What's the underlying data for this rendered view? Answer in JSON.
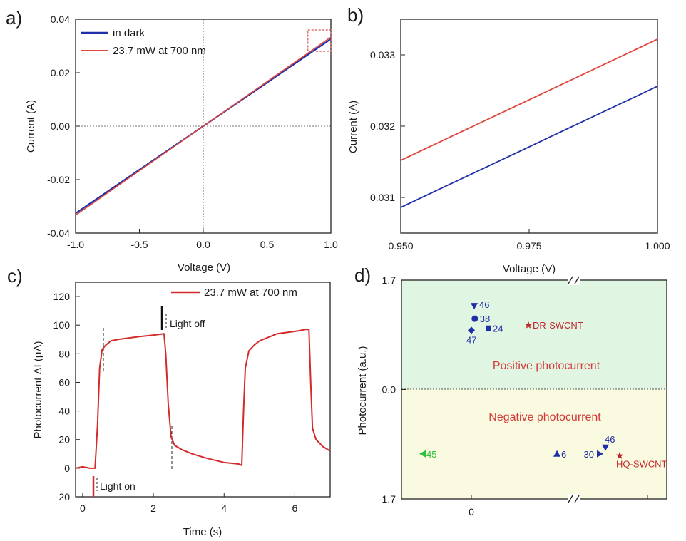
{
  "panels": {
    "a": {
      "label": "a)",
      "chart_data": {
        "type": "line",
        "xlabel": "Voltage (V)",
        "ylabel": "Current (A)",
        "xlim": [
          -1.0,
          1.0
        ],
        "ylim": [
          -0.04,
          0.04
        ],
        "xticks": [
          "-1.0",
          "-0.5",
          "0.0",
          "0.5",
          "1.0"
        ],
        "yticks": [
          "-0.04",
          "-0.02",
          "0.00",
          "0.02",
          "0.04"
        ],
        "series": [
          {
            "name": "in dark",
            "color": "#1f2fa8",
            "x": [
              -1.0,
              1.0
            ],
            "y": [
              -0.0326,
              0.0326
            ]
          },
          {
            "name": "23.7 mW at 700 nm",
            "color": "#e0463c",
            "x": [
              -1.0,
              1.0
            ],
            "y": [
              -0.0333,
              0.0333
            ]
          }
        ],
        "zoom_box": {
          "x": [
            0.82,
            1.0
          ],
          "y": [
            0.028,
            0.036
          ]
        },
        "legend": "top-left"
      }
    },
    "b": {
      "label": "b)",
      "chart_data": {
        "type": "line",
        "xlabel": "Voltage (V)",
        "ylabel": "Current (A)",
        "xlim": [
          0.95,
          1.0
        ],
        "ylim": [
          0.0305,
          0.0335
        ],
        "xticks": [
          "0.950",
          "0.975",
          "1.000"
        ],
        "yticks": [
          "0.031",
          "0.032",
          "0.033"
        ],
        "series": [
          {
            "name": "in dark",
            "color": "#1f2fa8",
            "x": [
              0.95,
              1.0
            ],
            "y": [
              0.03086,
              0.03256
            ]
          },
          {
            "name": "23.7 mW at 700 nm",
            "color": "#e0463c",
            "x": [
              0.95,
              1.0
            ],
            "y": [
              0.03152,
              0.03322
            ]
          }
        ]
      }
    },
    "c": {
      "label": "c)",
      "chart_data": {
        "type": "line",
        "xlabel": "Time (s)",
        "ylabel": "Photocurrent ΔI (μA)",
        "xlim": [
          -0.2,
          7.0
        ],
        "ylim": [
          -20,
          130
        ],
        "xticks": [
          "0",
          "2",
          "4",
          "6"
        ],
        "yticks": [
          "-20",
          "0",
          "20",
          "40",
          "60",
          "80",
          "100",
          "120"
        ],
        "series": [
          {
            "name": "23.7 mW at 700 nm",
            "color": "#d42a2a",
            "x": [
              -0.2,
              0.0,
              0.2,
              0.35,
              0.42,
              0.48,
              0.55,
              0.65,
              0.8,
              1.0,
              1.3,
              1.6,
              2.0,
              2.3,
              2.35,
              2.42,
              2.5,
              2.6,
              2.8,
              3.1,
              3.5,
              4.0,
              4.4,
              4.5,
              4.55,
              4.6,
              4.7,
              4.85,
              5.0,
              5.2,
              5.5,
              5.8,
              6.1,
              6.3,
              6.4,
              6.45,
              6.5,
              6.6,
              6.8,
              7.0
            ],
            "y": [
              0,
              1,
              0,
              0,
              30,
              70,
              83,
              86,
              89,
              90,
              91,
              92,
              93,
              94,
              80,
              45,
              22,
              16,
              13,
              10,
              7,
              4,
              3,
              2,
              40,
              70,
              82,
              86,
              89,
              91,
              94,
              95,
              96,
              97,
              97,
              60,
              28,
              20,
              15,
              12
            ]
          }
        ],
        "legend": "top-right",
        "annotations": [
          {
            "text": "Light on",
            "x": 0.38,
            "y": -10
          },
          {
            "text": "Light off",
            "x": 2.3,
            "y": 100
          }
        ]
      }
    },
    "d": {
      "label": "d)",
      "chart_data": {
        "type": "scatter",
        "ylabel": "Photocurrent (a.u.)",
        "ylim": [
          -1.7,
          1.7
        ],
        "yticks": [
          "1.7",
          "0.0",
          "-1.7"
        ],
        "xticks": [
          "0"
        ],
        "regions": [
          "Positive photocurrent",
          "Negative photocurrent"
        ],
        "points": [
          {
            "label": "46",
            "marker": "triangle-down",
            "color": "#1f2fa8",
            "x": 0.1,
            "y": 1.3
          },
          {
            "label": "38",
            "marker": "circle",
            "color": "#1f2fa8",
            "x": 0.12,
            "y": 1.1
          },
          {
            "label": "24",
            "marker": "square",
            "color": "#1f2fa8",
            "x": 0.6,
            "y": 0.95
          },
          {
            "label": "47",
            "marker": "diamond",
            "color": "#1f2fa8",
            "x": 0.0,
            "y": 0.92
          },
          {
            "label": "DR-SWCNT",
            "marker": "star",
            "color": "#c0282e",
            "x": 2.0,
            "y": 1.0
          },
          {
            "label": "45",
            "marker": "triangle-left",
            "color": "#2bc23a",
            "x": -1.7,
            "y": -1.0
          },
          {
            "label": "6",
            "marker": "triangle-up",
            "color": "#1f2fa8",
            "x": 3.0,
            "y": -1.0
          },
          {
            "label": "30",
            "marker": "triangle-right",
            "color": "#1f2fa8",
            "x": 4.5,
            "y": -1.0
          },
          {
            "label": "46",
            "marker": "triangle-down",
            "color": "#1f2fa8",
            "x": 4.7,
            "y": -0.9
          },
          {
            "label": "HQ-SWCNT",
            "marker": "star",
            "color": "#c0282e",
            "x": 5.2,
            "y": -1.03
          }
        ]
      }
    }
  }
}
